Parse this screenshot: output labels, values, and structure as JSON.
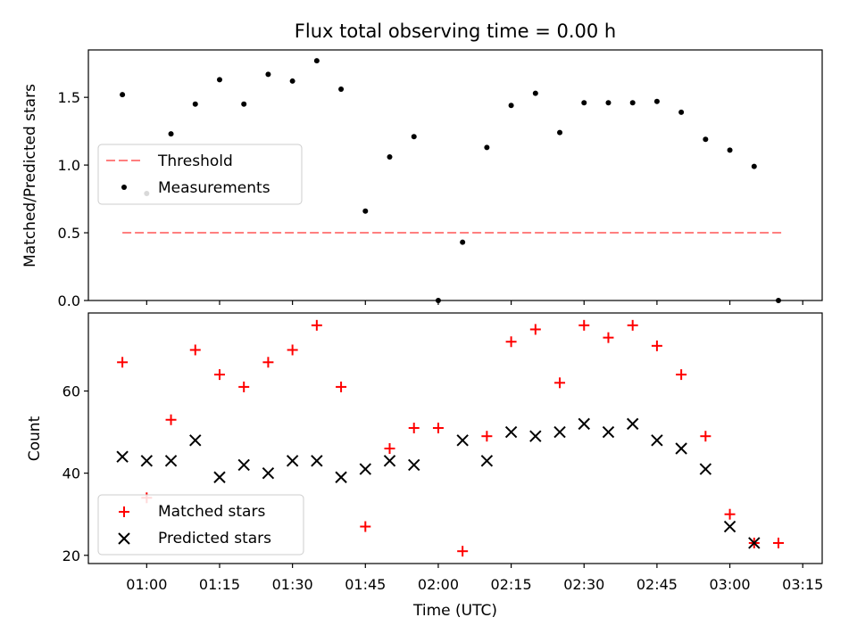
{
  "chart_data": [
    {
      "type": "scatter",
      "title": "Flux total observing time = 0.00 h",
      "xlabel": "",
      "ylabel": "Matched/Predicted stars",
      "ylim": [
        0,
        1.85
      ],
      "yticks": [
        "0.0",
        "0.5",
        "1.0",
        "1.5"
      ],
      "legend_position": "center-left",
      "series": [
        {
          "name": "Threshold",
          "kind": "dashed-line",
          "color": "#ff7f7f",
          "x": [
            "00:55",
            "03:11"
          ],
          "y": [
            0.5,
            0.5
          ]
        },
        {
          "name": "Measurements",
          "kind": "dot",
          "color": "#000000",
          "x": [
            "00:55",
            "01:00",
            "01:05",
            "01:10",
            "01:15",
            "01:20",
            "01:25",
            "01:30",
            "01:35",
            "01:40",
            "01:45",
            "01:50",
            "01:55",
            "02:00",
            "02:05",
            "02:10",
            "02:15",
            "02:20",
            "02:25",
            "02:30",
            "02:35",
            "02:40",
            "02:45",
            "02:50",
            "02:55",
            "03:00",
            "03:05",
            "03:10"
          ],
          "y": [
            1.52,
            0.79,
            1.23,
            1.45,
            1.63,
            1.45,
            1.67,
            1.62,
            1.77,
            1.56,
            0.66,
            1.06,
            1.21,
            0.0,
            0.43,
            1.13,
            1.44,
            1.53,
            1.24,
            1.46,
            1.46,
            1.46,
            1.47,
            1.39,
            1.19,
            1.11,
            0.99,
            0.0
          ]
        }
      ]
    },
    {
      "type": "scatter",
      "title": "",
      "xlabel": "Time (UTC)",
      "ylabel": "Count",
      "ylim": [
        18,
        79
      ],
      "yticks": [
        "20",
        "40",
        "60"
      ],
      "xticks": [
        "01:00",
        "01:15",
        "01:30",
        "01:45",
        "02:00",
        "02:15",
        "02:30",
        "02:45",
        "03:00",
        "03:15"
      ],
      "legend_position": "lower-left",
      "series": [
        {
          "name": "Matched stars",
          "marker": "+",
          "color": "#ff0000",
          "x": [
            "00:55",
            "01:00",
            "01:05",
            "01:10",
            "01:15",
            "01:20",
            "01:25",
            "01:30",
            "01:35",
            "01:40",
            "01:45",
            "01:50",
            "01:55",
            "02:00",
            "02:05",
            "02:10",
            "02:15",
            "02:20",
            "02:25",
            "02:30",
            "02:35",
            "02:40",
            "02:45",
            "02:50",
            "02:55",
            "03:00",
            "03:05",
            "03:10"
          ],
          "y": [
            67,
            34,
            53,
            70,
            64,
            61,
            67,
            70,
            76,
            61,
            27,
            46,
            51,
            51,
            21,
            49,
            72,
            75,
            62,
            76,
            73,
            76,
            71,
            64,
            49,
            30,
            23,
            23
          ]
        },
        {
          "name": "Predicted stars",
          "marker": "x",
          "color": "#000000",
          "x": [
            "00:55",
            "01:00",
            "01:05",
            "01:10",
            "01:15",
            "01:20",
            "01:25",
            "01:30",
            "01:35",
            "01:40",
            "01:45",
            "01:50",
            "01:55",
            "02:05",
            "02:10",
            "02:15",
            "02:20",
            "02:25",
            "02:30",
            "02:35",
            "02:40",
            "02:45",
            "02:50",
            "02:55",
            "03:00",
            "03:05"
          ],
          "y": [
            44,
            43,
            43,
            48,
            39,
            42,
            40,
            43,
            43,
            39,
            41,
            43,
            42,
            48,
            43,
            50,
            49,
            50,
            52,
            50,
            52,
            48,
            46,
            41,
            27,
            23
          ]
        }
      ]
    }
  ]
}
